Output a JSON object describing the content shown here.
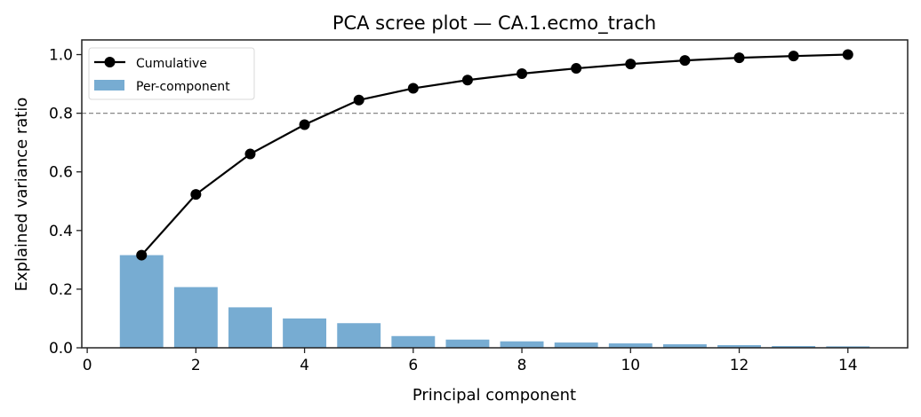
{
  "chart_data": {
    "type": "bar",
    "title": "PCA scree plot — CA.1.ecmo_trach",
    "xlabel": "Principal component",
    "ylabel": "Explained variance ratio",
    "xlim": [
      -0.1,
      15.1
    ],
    "ylim": [
      0.0,
      1.05
    ],
    "xticks": [
      0,
      2,
      4,
      6,
      8,
      10,
      12,
      14
    ],
    "xtick_labels": [
      "0",
      "2",
      "4",
      "6",
      "8",
      "10",
      "12",
      "14"
    ],
    "yticks": [
      0.0,
      0.2,
      0.4,
      0.6,
      0.8,
      1.0
    ],
    "ytick_labels": [
      "0.0",
      "0.2",
      "0.4",
      "0.6",
      "0.8",
      "1.0"
    ],
    "grid": false,
    "legend_position": "upper left",
    "categories": [
      1,
      2,
      3,
      4,
      5,
      6,
      7,
      8,
      9,
      10,
      11,
      12,
      13,
      14
    ],
    "series": [
      {
        "name": "Per-component",
        "type": "bar",
        "color": "#77acd2",
        "values": [
          0.316,
          0.207,
          0.138,
          0.1,
          0.084,
          0.04,
          0.028,
          0.022,
          0.018,
          0.015,
          0.012,
          0.009,
          0.006,
          0.005
        ]
      },
      {
        "name": "Cumulative",
        "type": "line",
        "color": "#000000",
        "marker": "circle",
        "values": [
          0.316,
          0.523,
          0.661,
          0.761,
          0.845,
          0.885,
          0.913,
          0.935,
          0.953,
          0.968,
          0.98,
          0.989,
          0.995,
          1.0
        ]
      }
    ],
    "annotations": [
      {
        "type": "hline",
        "y": 0.8,
        "style": "dashed",
        "color": "#888888"
      }
    ]
  },
  "legend": {
    "items": [
      {
        "label": "Cumulative",
        "kind": "line-marker",
        "color": "#000000"
      },
      {
        "label": "Per-component",
        "kind": "patch",
        "color": "#77acd2"
      }
    ]
  }
}
